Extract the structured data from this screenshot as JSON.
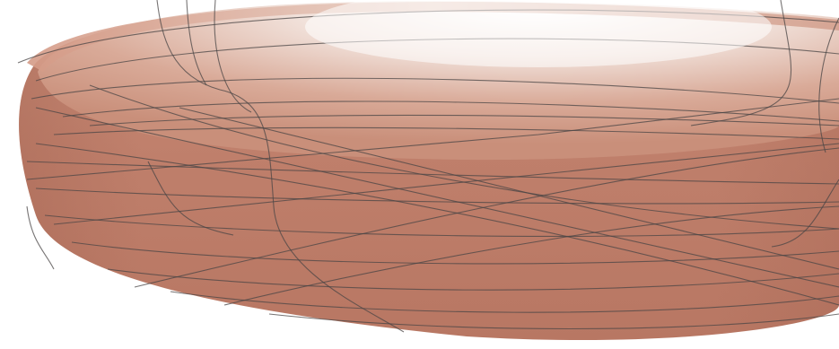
{
  "scene": {
    "subject": "translucent-dish-wireframe",
    "colors": {
      "background": "#ffffff",
      "body_light": "#e6c7bb",
      "body_mid": "#c98f7a",
      "body_dark": "#b67360",
      "inner_highlight": "#ffffff",
      "wire": "#4a4646"
    }
  }
}
